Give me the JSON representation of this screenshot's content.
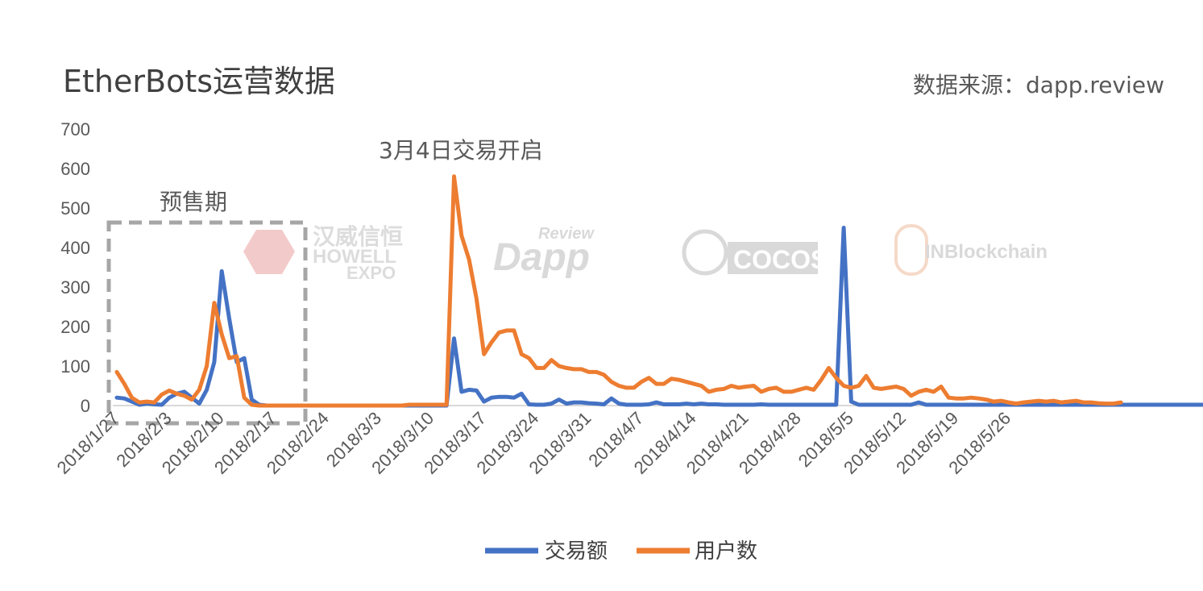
{
  "title": "EtherBots运营数据",
  "source": "数据来源：dapp.review",
  "watermarks": {
    "howell_cn": "汉威信恒",
    "howell_en1": "HOWELL",
    "howell_en2": "EXPO",
    "dapp_review": "Review",
    "dapp": "Dapp",
    "cocos": "COCOS",
    "inblockchain": "INBlockchain"
  },
  "chart_data": {
    "type": "line",
    "ylim": [
      0,
      700
    ],
    "yticks": [
      0,
      100,
      200,
      300,
      400,
      500,
      600,
      700
    ],
    "x_tick_labels": [
      "2018/1/27",
      "2018/2/3",
      "2018/2/10",
      "2018/2/17",
      "2018/2/24",
      "2018/3/3",
      "2018/3/10",
      "2018/3/17",
      "2018/3/24",
      "2018/3/31",
      "2018/4/7",
      "2018/4/14",
      "2018/4/21",
      "2018/4/28",
      "2018/5/5",
      "2018/5/12",
      "2018/5/19",
      "2018/5/26"
    ],
    "start_date": "2018/1/27",
    "grid": false,
    "legend_position": "bottom",
    "annotations": {
      "presale": "预售期",
      "trade_open": "3月4日交易开启"
    },
    "series": [
      {
        "name": "交易额",
        "color": "#4472c4",
        "values": [
          20,
          18,
          10,
          2,
          5,
          3,
          2,
          20,
          30,
          35,
          20,
          5,
          40,
          110,
          340,
          220,
          110,
          120,
          15,
          2,
          0,
          0,
          0,
          0,
          0,
          0,
          0,
          0,
          0,
          0,
          0,
          0,
          0,
          0,
          0,
          0,
          0,
          0,
          0,
          0,
          0,
          0,
          0,
          0,
          0,
          170,
          35,
          40,
          38,
          10,
          20,
          22,
          22,
          20,
          30,
          3,
          2,
          2,
          5,
          15,
          5,
          8,
          8,
          6,
          5,
          3,
          18,
          5,
          2,
          2,
          2,
          3,
          8,
          3,
          3,
          3,
          5,
          3,
          5,
          3,
          3,
          2,
          2,
          2,
          2,
          2,
          3,
          2,
          2,
          2,
          2,
          2,
          2,
          2,
          2,
          2,
          2,
          450,
          10,
          2,
          2,
          2,
          2,
          2,
          2,
          2,
          2,
          8,
          2,
          2,
          2,
          2,
          2,
          2,
          2,
          2,
          2,
          2,
          2,
          2,
          2,
          2,
          2,
          2,
          2,
          2,
          2,
          2,
          2,
          2,
          2,
          2,
          2,
          2,
          2,
          2,
          2,
          2,
          2,
          2,
          2,
          2,
          2,
          2,
          2,
          2
        ]
      },
      {
        "name": "用户数",
        "color": "#ed7d31",
        "values": [
          85,
          55,
          20,
          8,
          10,
          8,
          28,
          38,
          30,
          25,
          15,
          40,
          100,
          260,
          180,
          120,
          125,
          20,
          2,
          0,
          0,
          0,
          0,
          0,
          0,
          0,
          0,
          0,
          0,
          0,
          0,
          0,
          0,
          0,
          0,
          0,
          0,
          0,
          0,
          2,
          2,
          2,
          2,
          2,
          2,
          580,
          430,
          370,
          270,
          130,
          160,
          185,
          190,
          190,
          130,
          120,
          95,
          95,
          115,
          100,
          95,
          92,
          92,
          85,
          85,
          78,
          60,
          50,
          45,
          45,
          60,
          70,
          55,
          55,
          68,
          65,
          60,
          55,
          50,
          35,
          40,
          42,
          50,
          45,
          48,
          50,
          35,
          42,
          45,
          35,
          35,
          40,
          45,
          40,
          65,
          95,
          70,
          50,
          45,
          50,
          75,
          45,
          42,
          45,
          48,
          42,
          25,
          35,
          40,
          35,
          48,
          20,
          18,
          18,
          20,
          18,
          15,
          10,
          12,
          8,
          5,
          8,
          10,
          12,
          10,
          12,
          8,
          10,
          12,
          8,
          8,
          6,
          5,
          5,
          8
        ]
      }
    ]
  }
}
